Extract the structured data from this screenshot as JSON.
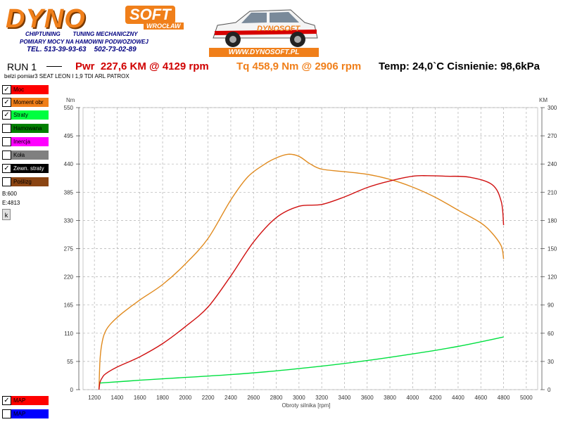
{
  "header": {
    "logo_main": "DYNO",
    "logo_soft": "SOFT",
    "logo_city": "WROCŁAW",
    "tagline_1": "CHIPTUNING        TUNING MECHANICZNY",
    "tagline_2": "POMIARY MOCY NA HAMOWNI PODWOZIOWEJ",
    "phone": "TEL. 513-39-93-63    502-73-02-89",
    "website": "WWW.DYNOSOFT.PL"
  },
  "run": {
    "label": "RUN 1",
    "pwr": "Pwr  227,6 KM @ 4129 rpm",
    "tq": "Tq 458,9 Nm @ 2906 rpm",
    "temp": "Temp: 24,0`C Cisnienie: 98,6kPa",
    "subtitle": "belzi pomiar3 SEAT LEON I 1,9 TDI ARL PATROX"
  },
  "sidebar": {
    "items": [
      {
        "label": "Moc",
        "checked": true,
        "color": "#ff0000",
        "text_color": "#000000"
      },
      {
        "label": "Moment obr",
        "checked": true,
        "color": "#f07f1a",
        "text_color": "#000000"
      },
      {
        "label": "Straty",
        "checked": true,
        "color": "#00ff40",
        "text_color": "#000000"
      },
      {
        "label": "Hamowana",
        "checked": false,
        "color": "#008000",
        "text_color": "#000000"
      },
      {
        "label": "Inercja",
        "checked": false,
        "color": "#ff00ff",
        "text_color": "#000000"
      },
      {
        "label": "Koła",
        "checked": false,
        "color": "#808080",
        "text_color": "#000000"
      },
      {
        "label": "Zewn. straty",
        "checked": true,
        "color": "#000000",
        "text_color": "#ffffff"
      },
      {
        "label": "Poślizg",
        "checked": false,
        "color": "#8b4513",
        "text_color": "#000000"
      }
    ],
    "b_value": "B:600",
    "e_value": "E:4813",
    "k_button": "k",
    "bottom_items": [
      {
        "label": "MAP",
        "checked": true,
        "color": "#ff0000"
      },
      {
        "label": "MAP",
        "checked": false,
        "color": "#0000ff"
      }
    ]
  },
  "chart_data": {
    "type": "line",
    "xlabel": "Obroty silnika [rpm]",
    "ylabel_left": "Nm",
    "ylabel_right": "KM",
    "xlim": [
      1100,
      5100
    ],
    "ylim_left": [
      0,
      550
    ],
    "ylim_right": [
      0,
      300
    ],
    "x_ticks": [
      1200,
      1400,
      1600,
      1800,
      2000,
      2200,
      2400,
      2600,
      2800,
      3000,
      3200,
      3400,
      3600,
      3800,
      4000,
      4200,
      4400,
      4600,
      4800,
      5000
    ],
    "y_ticks_left": [
      0,
      55,
      110,
      165,
      220,
      275,
      330,
      385,
      440,
      495,
      550
    ],
    "y_ticks_right": [
      0,
      30,
      60,
      90,
      120,
      150,
      180,
      210,
      240,
      270,
      300
    ],
    "grid": true,
    "series": [
      {
        "name": "Moment obr",
        "axis": "left",
        "color": "#e08a1e",
        "x": [
          1240,
          1250,
          1270,
          1300,
          1350,
          1450,
          1600,
          1800,
          2000,
          2200,
          2400,
          2550,
          2700,
          2800,
          2906,
          3000,
          3100,
          3200,
          3400,
          3600,
          3800,
          4000,
          4200,
          4400,
          4600,
          4700,
          4780,
          4800
        ],
        "y": [
          0,
          60,
          95,
          115,
          130,
          150,
          175,
          205,
          245,
          295,
          370,
          415,
          440,
          452,
          459,
          455,
          440,
          430,
          425,
          420,
          410,
          395,
          375,
          350,
          325,
          305,
          280,
          255
        ]
      },
      {
        "name": "Moc",
        "axis": "right",
        "color": "#d01010",
        "x": [
          1240,
          1250,
          1270,
          1300,
          1400,
          1600,
          1800,
          2000,
          2200,
          2400,
          2600,
          2800,
          3000,
          3200,
          3400,
          3600,
          3800,
          4000,
          4129,
          4300,
          4500,
          4700,
          4780,
          4800
        ],
        "y": [
          0,
          8,
          13,
          17,
          24,
          35,
          49,
          67,
          88,
          121,
          157,
          183,
          195,
          197,
          205,
          215,
          222,
          227,
          227.6,
          227,
          226,
          218,
          200,
          175
        ]
      },
      {
        "name": "Straty",
        "axis": "right",
        "color": "#00e040",
        "x": [
          1250,
          1600,
          2000,
          2400,
          2800,
          3200,
          3600,
          4000,
          4400,
          4800
        ],
        "y": [
          7,
          10,
          13,
          16,
          20,
          25,
          31,
          38,
          46,
          56
        ]
      }
    ]
  }
}
